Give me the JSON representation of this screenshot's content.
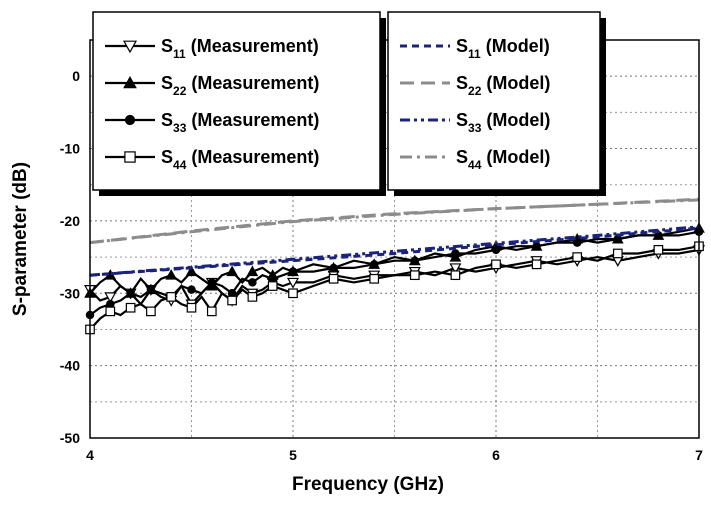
{
  "chart_data": {
    "type": "line",
    "xlabel": "Frequency (GHz)",
    "ylabel": "S-parameter (dB)",
    "xlim": [
      4,
      7
    ],
    "ylim": [
      -50,
      5
    ],
    "xticks": [
      "4",
      "5",
      "6",
      "7"
    ],
    "yticks": [
      "0",
      "-10",
      "-20",
      "-30",
      "-40",
      "-50"
    ],
    "grid": "dotted",
    "legend_placement": "top, two boxes",
    "series": [
      {
        "name": "S11 (Measurement)",
        "name_main": "S",
        "name_sub": "11",
        "name_rest": " (Measurement)",
        "style": "measurement",
        "marker": "triangle-down-open",
        "color": "#000000",
        "x": [
          4.0,
          4.05,
          4.1,
          4.15,
          4.2,
          4.25,
          4.3,
          4.35,
          4.4,
          4.45,
          4.5,
          4.55,
          4.6,
          4.65,
          4.7,
          4.75,
          4.8,
          4.85,
          4.9,
          4.95,
          5.0,
          5.1,
          5.2,
          5.3,
          5.4,
          5.5,
          5.6,
          5.7,
          5.8,
          5.9,
          6.0,
          6.1,
          6.2,
          6.3,
          6.4,
          6.5,
          6.6,
          6.7,
          6.8,
          6.9,
          7.0
        ],
        "y": [
          -29.5,
          -31,
          -30.5,
          -29,
          -30,
          -31.5,
          -29.5,
          -30.5,
          -31,
          -29,
          -31.5,
          -30,
          -28.5,
          -30,
          -31,
          -29,
          -30,
          -29.5,
          -28.5,
          -29,
          -28.5,
          -28.5,
          -27.5,
          -28,
          -27.5,
          -27.5,
          -27,
          -27.5,
          -26.5,
          -27,
          -26.5,
          -26,
          -25.5,
          -26,
          -25.5,
          -25,
          -25.5,
          -25,
          -24.5,
          -24.5,
          -24
        ]
      },
      {
        "name": "S22 (Measurement)",
        "name_main": "S",
        "name_sub": "22",
        "name_rest": " (Measurement)",
        "style": "measurement",
        "marker": "triangle-up-filled",
        "color": "#000000",
        "x": [
          4.0,
          4.05,
          4.1,
          4.15,
          4.2,
          4.25,
          4.3,
          4.35,
          4.4,
          4.45,
          4.5,
          4.55,
          4.6,
          4.65,
          4.7,
          4.75,
          4.8,
          4.85,
          4.9,
          4.95,
          5.0,
          5.1,
          5.2,
          5.3,
          5.4,
          5.5,
          5.6,
          5.7,
          5.8,
          5.9,
          6.0,
          6.1,
          6.2,
          6.3,
          6.4,
          6.5,
          6.6,
          6.7,
          6.8,
          6.9,
          7.0
        ],
        "y": [
          -30,
          -28.5,
          -27.5,
          -29,
          -30,
          -28,
          -29.5,
          -28,
          -27.5,
          -28.5,
          -27,
          -28,
          -29,
          -27.5,
          -27,
          -28.5,
          -27,
          -26.5,
          -27.5,
          -26.5,
          -27,
          -26,
          -26.5,
          -25.5,
          -26,
          -25,
          -25.5,
          -24.5,
          -25,
          -24,
          -23.5,
          -24,
          -23.5,
          -23,
          -22.5,
          -23,
          -22.5,
          -22,
          -22,
          -21.5,
          -21
        ]
      },
      {
        "name": "S33 (Measurement)",
        "name_main": "S",
        "name_sub": "33",
        "name_rest": " (Measurement)",
        "style": "measurement",
        "marker": "circle-filled",
        "color": "#000000",
        "x": [
          4.0,
          4.05,
          4.1,
          4.15,
          4.2,
          4.25,
          4.3,
          4.35,
          4.4,
          4.45,
          4.5,
          4.55,
          4.6,
          4.65,
          4.7,
          4.75,
          4.8,
          4.85,
          4.9,
          4.95,
          5.0,
          5.1,
          5.2,
          5.3,
          5.4,
          5.5,
          5.6,
          5.7,
          5.8,
          5.9,
          6.0,
          6.1,
          6.2,
          6.3,
          6.4,
          6.5,
          6.6,
          6.7,
          6.8,
          6.9,
          7.0
        ],
        "y": [
          -33,
          -32,
          -31.5,
          -31,
          -30,
          -30.5,
          -29.5,
          -30,
          -30.5,
          -29,
          -29.5,
          -30,
          -28.5,
          -29,
          -30,
          -28,
          -28.5,
          -27.5,
          -28,
          -27.5,
          -27,
          -27,
          -26.5,
          -26.5,
          -26,
          -25.5,
          -25.5,
          -25,
          -24.5,
          -24.5,
          -24,
          -23.5,
          -23.5,
          -23,
          -23,
          -22.5,
          -22.5,
          -22,
          -22,
          -22,
          -21.5
        ]
      },
      {
        "name": "S44 (Measurement)",
        "name_main": "S",
        "name_sub": "44",
        "name_rest": " (Measurement)",
        "style": "measurement",
        "marker": "square-open",
        "color": "#000000",
        "x": [
          4.0,
          4.05,
          4.1,
          4.15,
          4.2,
          4.25,
          4.3,
          4.35,
          4.4,
          4.45,
          4.5,
          4.55,
          4.6,
          4.65,
          4.7,
          4.75,
          4.8,
          4.85,
          4.9,
          4.95,
          5.0,
          5.1,
          5.2,
          5.3,
          5.4,
          5.5,
          5.6,
          5.7,
          5.8,
          5.9,
          6.0,
          6.1,
          6.2,
          6.3,
          6.4,
          6.5,
          6.6,
          6.7,
          6.8,
          6.9,
          7.0
        ],
        "y": [
          -35,
          -33.5,
          -32.5,
          -33,
          -32,
          -31.5,
          -32.5,
          -31,
          -30.5,
          -31.5,
          -32,
          -30.5,
          -32.5,
          -30,
          -31,
          -29.5,
          -30.5,
          -30,
          -29,
          -29.5,
          -30,
          -29,
          -28,
          -28.5,
          -28,
          -27.5,
          -27.5,
          -27,
          -27.5,
          -26.5,
          -26,
          -26.5,
          -26,
          -25.5,
          -25,
          -25.5,
          -24.5,
          -24.5,
          -24,
          -24,
          -23.5
        ]
      },
      {
        "name": "S11 (Model)",
        "name_main": "S",
        "name_sub": "11",
        "name_rest": " (Model)",
        "style": "short-dash",
        "color": "#1a237e",
        "x": [
          4,
          4.5,
          5,
          5.5,
          6,
          6.5,
          7
        ],
        "y": [
          -27.5,
          -26.5,
          -25.5,
          -24.5,
          -23.3,
          -22.2,
          -21
        ]
      },
      {
        "name": "S22 (Model)",
        "name_main": "S",
        "name_sub": "22",
        "name_rest": " (Model)",
        "style": "long-dash",
        "color": "#8c8c8c",
        "x": [
          4,
          4.5,
          5,
          5.5,
          6,
          6.5,
          7
        ],
        "y": [
          -23,
          -21.4,
          -20,
          -19,
          -18.3,
          -17.7,
          -17
        ]
      },
      {
        "name": "S33 (Model)",
        "name_main": "S",
        "name_sub": "33",
        "name_rest": " (Model)",
        "style": "dash-dot-dot",
        "color": "#1a237e",
        "x": [
          4,
          4.5,
          5,
          5.5,
          6,
          6.5,
          7
        ],
        "y": [
          -27.5,
          -26.4,
          -25.3,
          -24.2,
          -23.1,
          -22,
          -20.8
        ]
      },
      {
        "name": "S44 (Model)",
        "name_main": "S",
        "name_sub": "44",
        "name_rest": " (Model)",
        "style": "dash-dot",
        "color": "#8c8c8c",
        "x": [
          4,
          4.5,
          5,
          5.5,
          6,
          6.5,
          7
        ],
        "y": [
          -23,
          -21.5,
          -20.1,
          -19.1,
          -18.3,
          -17.7,
          -17.1
        ]
      }
    ]
  }
}
